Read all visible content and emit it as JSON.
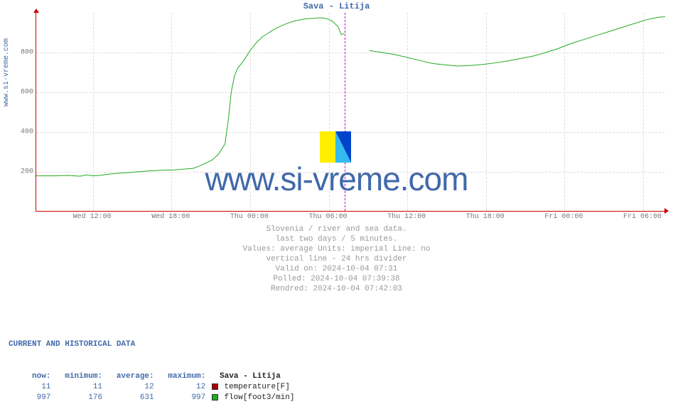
{
  "chart": {
    "title": "Sava - Litija",
    "ylabel_left": "www.si-vreme.com",
    "watermark": "www.si-vreme.com",
    "type": "line",
    "background_color": "#ffffff",
    "grid_color": "#dddddd",
    "axis_color": "#cc0000",
    "line_color": "#22aa22",
    "divider_color": "#cc00cc",
    "title_color": "#4169aa",
    "ylim": [
      0,
      1000
    ],
    "yticks": [
      200,
      400,
      600,
      800
    ],
    "xticks": [
      "Wed 12:00",
      "Wed 18:00",
      "Thu 00:00",
      "Thu 06:00",
      "Thu 12:00",
      "Thu 18:00",
      "Fri 00:00",
      "Fri 06:00"
    ],
    "xtick_positions_pct": [
      9,
      21.5,
      34,
      46.5,
      59,
      71.5,
      84,
      96.5
    ],
    "divider_position_pct": 49,
    "series_flow": [
      [
        0,
        180
      ],
      [
        3,
        180
      ],
      [
        5,
        182
      ],
      [
        7,
        178
      ],
      [
        8,
        185
      ],
      [
        9,
        180
      ],
      [
        10,
        182
      ],
      [
        12,
        190
      ],
      [
        14,
        195
      ],
      [
        16,
        200
      ],
      [
        18,
        205
      ],
      [
        20,
        208
      ],
      [
        22,
        210
      ],
      [
        24,
        215
      ],
      [
        25,
        218
      ],
      [
        26,
        230
      ],
      [
        27,
        245
      ],
      [
        28,
        260
      ],
      [
        29,
        290
      ],
      [
        30,
        340
      ],
      [
        30.5,
        450
      ],
      [
        31,
        600
      ],
      [
        31.5,
        680
      ],
      [
        32,
        720
      ],
      [
        33,
        760
      ],
      [
        34,
        810
      ],
      [
        35,
        850
      ],
      [
        36,
        880
      ],
      [
        37,
        900
      ],
      [
        38,
        920
      ],
      [
        39,
        935
      ],
      [
        40,
        948
      ],
      [
        41,
        958
      ],
      [
        42,
        965
      ],
      [
        43,
        970
      ],
      [
        44,
        972
      ],
      [
        45,
        975
      ],
      [
        46,
        972
      ],
      [
        47,
        960
      ],
      [
        48,
        930
      ],
      [
        48.5,
        890
      ],
      [
        49,
        895
      ]
    ],
    "series_flow_2": [
      [
        53,
        810
      ],
      [
        55,
        800
      ],
      [
        57,
        790
      ],
      [
        59,
        775
      ],
      [
        61,
        760
      ],
      [
        63,
        745
      ],
      [
        65,
        738
      ],
      [
        67,
        732
      ],
      [
        69,
        735
      ],
      [
        71,
        740
      ],
      [
        73,
        748
      ],
      [
        75,
        758
      ],
      [
        77,
        770
      ],
      [
        79,
        782
      ],
      [
        81,
        800
      ],
      [
        83,
        820
      ],
      [
        85,
        845
      ],
      [
        87,
        865
      ],
      [
        89,
        885
      ],
      [
        91,
        905
      ],
      [
        93,
        925
      ],
      [
        95,
        945
      ],
      [
        97,
        965
      ],
      [
        99,
        978
      ],
      [
        100,
        980
      ]
    ]
  },
  "caption": {
    "l1": "Slovenia / river and sea data.",
    "l2": "last two days / 5 minutes.",
    "l3": "Values: average  Units: imperial  Line: no",
    "l4": "vertical line - 24 hrs  divider",
    "l5": "Valid on: 2024-10-04 07:31",
    "l6": "Polled: 2024-10-04 07:39:38",
    "l7": "Rendred: 2024-10-04 07:42:03"
  },
  "stats": {
    "header": "CURRENT AND HISTORICAL DATA",
    "columns": [
      "now:",
      "minimum:",
      "average:",
      "maximum:"
    ],
    "station": "Sava - Litija",
    "rows": [
      {
        "vals": [
          "11",
          "11",
          "12",
          "12"
        ],
        "swatch": "#aa0000",
        "label": "temperature[F]"
      },
      {
        "vals": [
          "997",
          "176",
          "631",
          "997"
        ],
        "swatch": "#22aa22",
        "label": "flow[foot3/min]"
      }
    ]
  }
}
